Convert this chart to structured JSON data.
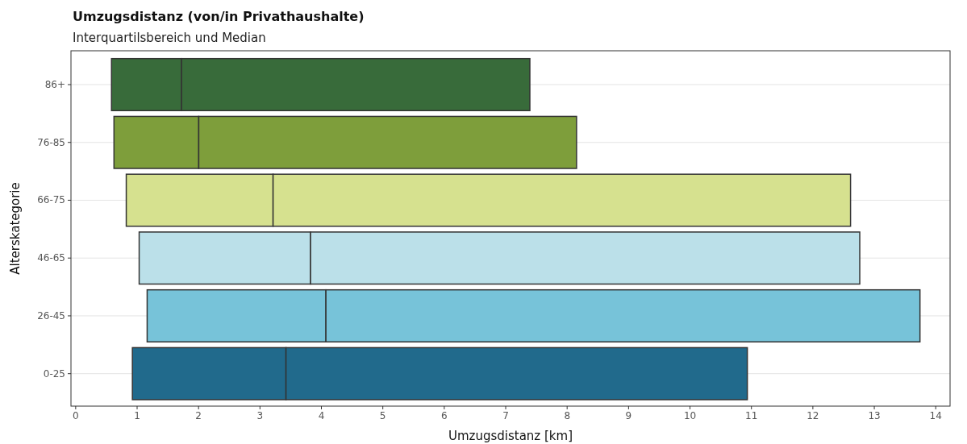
{
  "chart_data": {
    "type": "bar",
    "orientation": "horizontal",
    "title": "Umzugsdistanz (von/in Privathaushalte)",
    "subtitle": "Interquartilsbereich und Median",
    "xlabel": "Umzugsdistanz [km]",
    "ylabel": "Alterskategorie",
    "categories": [
      "86+",
      "76-85",
      "66-75",
      "46-65",
      "26-45",
      "0-25"
    ],
    "series": [
      {
        "base": [
          0.59,
          0.63,
          0.83,
          1.04,
          1.17,
          0.93
        ],
        "values": [
          1.14,
          1.38,
          2.39,
          2.79,
          2.91,
          2.5
        ],
        "colors": [
          "#386b3a",
          "#7e9e3b",
          "#d6e18f",
          "#bbe0e9",
          "#77c3d9",
          "#216a8c"
        ]
      },
      {
        "base": [
          1.73,
          2.01,
          3.22,
          3.83,
          4.08,
          3.43
        ],
        "values": [
          5.67,
          6.15,
          9.4,
          8.94,
          9.67,
          7.51
        ],
        "colors": [
          "#386b3a",
          "#7e9e3b",
          "#d6e18f",
          "#bbe0e9",
          "#77c3d9",
          "#216a8c"
        ]
      }
    ],
    "xlim": [
      -0.07,
      14.24
    ],
    "xticks": [
      0,
      1,
      2,
      3,
      4,
      5,
      6,
      7,
      8,
      9,
      10,
      11,
      12,
      13,
      14
    ],
    "grid": "y"
  }
}
